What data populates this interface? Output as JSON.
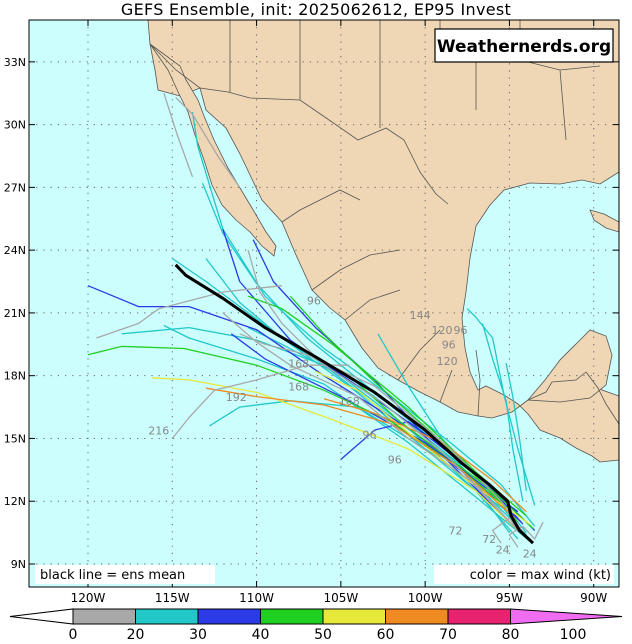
{
  "title": "GEFS Ensemble, init: 2025062612, EP95 Invest",
  "watermark": "Weathernerds.org",
  "legend_mean": "black line = ens mean",
  "legend_color": "color = max wind (kt)",
  "colors": {
    "ocean": "#ccfefe",
    "land": "#efd6b4",
    "border": "#555555",
    "mean_track": "#000000"
  },
  "chart_data": {
    "type": "map",
    "x_ticks": [
      {
        "lon": -120,
        "label": "120W"
      },
      {
        "lon": -115,
        "label": "115W"
      },
      {
        "lon": -110,
        "label": "110W"
      },
      {
        "lon": -105,
        "label": "105W"
      },
      {
        "lon": -100,
        "label": "100W"
      },
      {
        "lon": -95,
        "label": "95W"
      },
      {
        "lon": -90,
        "label": "90W"
      }
    ],
    "y_ticks": [
      {
        "lat": 9,
        "label": "9N"
      },
      {
        "lat": 12,
        "label": "12N"
      },
      {
        "lat": 15,
        "label": "15N"
      },
      {
        "lat": 18,
        "label": "18N"
      },
      {
        "lat": 21,
        "label": "21N"
      },
      {
        "lat": 24,
        "label": "24N"
      },
      {
        "lat": 27,
        "label": "27N"
      },
      {
        "lat": 30,
        "label": "30N"
      },
      {
        "lat": 33,
        "label": "33N"
      }
    ],
    "lon_range": [
      -123.5,
      -88.5
    ],
    "lat_range": [
      7.9,
      35.0
    ],
    "colorbar": {
      "ticks": [
        "0",
        "20",
        "30",
        "40",
        "50",
        "60",
        "70",
        "80",
        "100"
      ],
      "colors": [
        "#a8a8a8",
        "#22c8c8",
        "#2c3ae8",
        "#20d020",
        "#e6e83a",
        "#f08a22",
        "#e8226e",
        "#f06cf0"
      ]
    },
    "ensemble_mean": [
      [
        -93.6,
        10.0
      ],
      [
        -94.4,
        10.6
      ],
      [
        -94.9,
        11.3
      ],
      [
        -95.1,
        12.0
      ],
      [
        -96.2,
        12.8
      ],
      [
        -97.8,
        13.8
      ],
      [
        -100.0,
        15.4
      ],
      [
        -103.0,
        17.2
      ],
      [
        -106.5,
        18.9
      ],
      [
        -109.5,
        20.3
      ],
      [
        -112.0,
        21.7
      ],
      [
        -114.2,
        22.8
      ],
      [
        -114.8,
        23.3
      ]
    ],
    "members": [
      {
        "wind": 25,
        "points": [
          [
            -94,
            10.5
          ],
          [
            -96,
            12.5
          ],
          [
            -99,
            14.6
          ],
          [
            -103,
            17.2
          ],
          [
            -107,
            19.8
          ],
          [
            -110,
            22.4
          ],
          [
            -112,
            24.8
          ],
          [
            -113.2,
            27.2
          ]
        ]
      },
      {
        "wind": 25,
        "points": [
          [
            -93.5,
            10.8
          ],
          [
            -95.5,
            12.8
          ],
          [
            -98.5,
            14.8
          ],
          [
            -102,
            17.0
          ],
          [
            -106,
            19.3
          ],
          [
            -109.5,
            21.8
          ],
          [
            -112,
            25.0
          ],
          [
            -113.5,
            29.0
          ],
          [
            -113.8,
            30.6
          ]
        ]
      },
      {
        "wind": 25,
        "points": [
          [
            -94.5,
            10.2
          ],
          [
            -97,
            12.5
          ],
          [
            -101,
            15.5
          ],
          [
            -105,
            18.0
          ],
          [
            -108.5,
            19.5
          ],
          [
            -110.5,
            20.3
          ]
        ]
      },
      {
        "wind": 25,
        "points": [
          [
            -94.5,
            11.2
          ],
          [
            -96,
            12.0
          ],
          [
            -98,
            13.8
          ],
          [
            -103,
            17.0
          ],
          [
            -108.5,
            19.8
          ],
          [
            -113,
            22.5
          ],
          [
            -115,
            23.6
          ]
        ]
      },
      {
        "wind": 25,
        "points": [
          [
            -95,
            10.5
          ],
          [
            -98,
            13.8
          ],
          [
            -102,
            16.0
          ],
          [
            -106,
            18.5
          ],
          [
            -110,
            19.7
          ],
          [
            -114,
            20.3
          ],
          [
            -118,
            20.0
          ]
        ]
      },
      {
        "wind": 25,
        "points": [
          [
            -93.8,
            10.1
          ],
          [
            -97,
            12.2
          ],
          [
            -101,
            14.8
          ],
          [
            -106,
            17.6
          ],
          [
            -110,
            18.8
          ],
          [
            -114,
            19.8
          ],
          [
            -115.5,
            20.4
          ]
        ]
      },
      {
        "wind": 25,
        "points": [
          [
            -95.5,
            11.5
          ],
          [
            -100,
            14.5
          ],
          [
            -104.5,
            17.5
          ],
          [
            -108.5,
            19.8
          ],
          [
            -111,
            21.5
          ],
          [
            -113,
            23.6
          ]
        ]
      },
      {
        "wind": 25,
        "points": [
          [
            -94,
            10.4
          ],
          [
            -96,
            12.0
          ],
          [
            -99,
            14.0
          ],
          [
            -104,
            16.5
          ],
          [
            -108,
            16.8
          ],
          [
            -111,
            16.5
          ],
          [
            -112.8,
            15.6
          ]
        ]
      },
      {
        "wind": 35,
        "points": [
          [
            -94.2,
            10.9
          ],
          [
            -96.5,
            13.0
          ],
          [
            -100,
            15.2
          ],
          [
            -104,
            17.5
          ],
          [
            -108,
            19.7
          ],
          [
            -111,
            22.5
          ],
          [
            -112,
            25.0
          ]
        ]
      },
      {
        "wind": 35,
        "points": [
          [
            -95,
            11.0
          ],
          [
            -99,
            14.2
          ],
          [
            -103,
            17.8
          ],
          [
            -106.5,
            20.3
          ],
          [
            -109,
            22.5
          ],
          [
            -110.2,
            24.5
          ]
        ]
      },
      {
        "wind": 35,
        "points": [
          [
            -94.5,
            11.5
          ],
          [
            -97,
            13.0
          ],
          [
            -101,
            15.5
          ],
          [
            -106,
            18.0
          ],
          [
            -110,
            20.2
          ],
          [
            -114,
            21.3
          ],
          [
            -117,
            21.3
          ],
          [
            -120,
            22.3
          ]
        ]
      },
      {
        "wind": 35,
        "points": [
          [
            -94.3,
            11.0
          ],
          [
            -96.5,
            12.6
          ],
          [
            -100,
            14.8
          ],
          [
            -105,
            17.0
          ],
          [
            -109.5,
            18.8
          ],
          [
            -111.5,
            20.0
          ]
        ]
      },
      {
        "wind": 35,
        "points": [
          [
            -93.5,
            10.6
          ],
          [
            -96,
            12.6
          ],
          [
            -98.5,
            14.3
          ],
          [
            -101,
            15.8
          ],
          [
            -103,
            15.4
          ],
          [
            -105,
            14.0
          ]
        ]
      },
      {
        "wind": 25,
        "points": [
          [
            -94.5,
            10.8
          ],
          [
            -96.5,
            12.8
          ],
          [
            -99,
            15.0
          ],
          [
            -101,
            17.5
          ],
          [
            -102.8,
            20.0
          ]
        ]
      },
      {
        "wind": 25,
        "points": [
          [
            -93.5,
            11.8
          ],
          [
            -94.5,
            14.5
          ],
          [
            -95.3,
            17.0
          ],
          [
            -96.0,
            19.8
          ],
          [
            -97.0,
            20.8
          ],
          [
            -97.5,
            21.2
          ]
        ]
      },
      {
        "wind": 25,
        "points": [
          [
            -94.2,
            12.0
          ],
          [
            -94.8,
            14.5
          ],
          [
            -95.2,
            16.8
          ],
          [
            -96.0,
            18.8
          ],
          [
            -96.6,
            20.5
          ]
        ]
      },
      {
        "wind": 25,
        "points": [
          [
            -94.0,
            12.5
          ],
          [
            -94.4,
            15.0
          ],
          [
            -94.8,
            17.0
          ],
          [
            -95.2,
            18.6
          ]
        ]
      },
      {
        "wind": 45,
        "points": [
          [
            -94.5,
            11.0
          ],
          [
            -96.5,
            12.8
          ],
          [
            -99.5,
            15.2
          ],
          [
            -103,
            17.7
          ],
          [
            -106,
            20.0
          ],
          [
            -108,
            21.8
          ]
        ]
      },
      {
        "wind": 45,
        "points": [
          [
            -95,
            11.6
          ],
          [
            -98,
            13.6
          ],
          [
            -102,
            15.8
          ],
          [
            -106,
            17.3
          ],
          [
            -110,
            18.5
          ],
          [
            -114.3,
            19.3
          ],
          [
            -118,
            19.4
          ],
          [
            -120,
            19.0
          ]
        ]
      },
      {
        "wind": 45,
        "points": [
          [
            -93.6,
            10.7
          ],
          [
            -96,
            12.5
          ],
          [
            -99,
            14.3
          ],
          [
            -101.5,
            15.8
          ],
          [
            -104.5,
            18.0
          ]
        ]
      },
      {
        "wind": 45,
        "points": [
          [
            -94,
            11.3
          ],
          [
            -97,
            13.4
          ],
          [
            -101,
            16.5
          ],
          [
            -105.5,
            19.5
          ],
          [
            -108.5,
            21.2
          ],
          [
            -110.5,
            21.8
          ]
        ]
      },
      {
        "wind": 55,
        "points": [
          [
            -94.5,
            10.6
          ],
          [
            -97,
            12.5
          ],
          [
            -101,
            14.5
          ],
          [
            -105.5,
            15.9
          ],
          [
            -110,
            17.2
          ],
          [
            -114,
            17.8
          ],
          [
            -116.2,
            17.9
          ]
        ]
      },
      {
        "wind": 55,
        "points": [
          [
            -93.8,
            10.9
          ],
          [
            -97.5,
            13.0
          ],
          [
            -101.5,
            15.6
          ],
          [
            -104,
            17.3
          ],
          [
            -106.5,
            18.2
          ]
        ]
      },
      {
        "wind": 65,
        "points": [
          [
            -94.7,
            11.2
          ],
          [
            -98,
            13.6
          ],
          [
            -102,
            15.7
          ],
          [
            -106,
            16.6
          ],
          [
            -110,
            17.0
          ],
          [
            -113,
            17.4
          ]
        ]
      },
      {
        "wind": 65,
        "points": [
          [
            -94,
            11.5
          ],
          [
            -96,
            13.0
          ],
          [
            -99,
            14.8
          ],
          [
            -103,
            16.2
          ],
          [
            -106,
            16.9
          ]
        ]
      },
      {
        "wind": 15,
        "points": [
          [
            -94.4,
            10.5
          ],
          [
            -97,
            12.8
          ],
          [
            -101,
            15.0
          ],
          [
            -104,
            17.0
          ],
          [
            -108,
            18.5
          ],
          [
            -110,
            19.6
          ],
          [
            -112,
            21.0
          ]
        ]
      },
      {
        "wind": 15,
        "points": [
          [
            -94,
            10.3
          ],
          [
            -95.5,
            12.0
          ],
          [
            -98.5,
            14.5
          ],
          [
            -103,
            17.5
          ],
          [
            -107,
            19.0
          ],
          [
            -109.5,
            19.5
          ],
          [
            -111,
            20.0
          ]
        ]
      },
      {
        "wind": 15,
        "points": [
          [
            -95,
            11.0
          ],
          [
            -98.5,
            14.0
          ],
          [
            -102.5,
            16.7
          ],
          [
            -106,
            18.5
          ],
          [
            -108.5,
            20.5
          ],
          [
            -109.8,
            22.0
          ],
          [
            -110.5,
            24.0
          ]
        ]
      },
      {
        "wind": 15,
        "points": [
          [
            -104.5,
            18.5
          ],
          [
            -107,
            18.5
          ],
          [
            -110,
            17.8
          ],
          [
            -112.5,
            17.3
          ],
          [
            -114,
            16.0
          ],
          [
            -115,
            15.0
          ]
        ]
      },
      {
        "wind": 15,
        "points": [
          [
            -108.5,
            22.3
          ],
          [
            -112,
            22.0
          ],
          [
            -115.8,
            21.2
          ],
          [
            -117,
            20.5
          ],
          [
            -119.5,
            19.8
          ]
        ]
      },
      {
        "wind": 15,
        "points": [
          [
            -111,
            27.0
          ],
          [
            -112.3,
            28.5
          ],
          [
            -113.8,
            30.5
          ],
          [
            -114.8,
            31.3
          ]
        ]
      },
      {
        "wind": 15,
        "points": [
          [
            -113.8,
            27.5
          ],
          [
            -114.7,
            29.5
          ],
          [
            -115.5,
            31.5
          ]
        ]
      },
      {
        "wind": 15,
        "points": [
          [
            -94.5,
            9.8
          ],
          [
            -95.0,
            10.4
          ],
          [
            -94.2,
            10.8
          ],
          [
            -93.5,
            10.2
          ],
          [
            -93.0,
            11.0
          ]
        ]
      },
      {
        "wind": 15,
        "points": [
          [
            -95.5,
            10.0
          ],
          [
            -96.0,
            10.6
          ],
          [
            -95.0,
            11.2
          ],
          [
            -94.5,
            10.6
          ]
        ]
      }
    ],
    "labels": [
      {
        "text": "144",
        "lon": -100.3,
        "lat": 20.7
      },
      {
        "text": "120",
        "lon": -99.0,
        "lat": 20.0
      },
      {
        "text": "96",
        "lon": -97.9,
        "lat": 20.0
      },
      {
        "text": "96",
        "lon": -98.6,
        "lat": 19.3
      },
      {
        "text": "120",
        "lon": -98.7,
        "lat": 18.5
      },
      {
        "text": "216",
        "lon": -115.8,
        "lat": 15.2
      },
      {
        "text": "192",
        "lon": -111.2,
        "lat": 16.8
      },
      {
        "text": "168",
        "lon": -107.5,
        "lat": 17.3
      },
      {
        "text": "168",
        "lon": -104.5,
        "lat": 16.6
      },
      {
        "text": "168",
        "lon": -107.5,
        "lat": 18.4
      },
      {
        "text": "96",
        "lon": -103.3,
        "lat": 15.0
      },
      {
        "text": "96",
        "lon": -101.8,
        "lat": 13.8
      },
      {
        "text": "96",
        "lon": -106.6,
        "lat": 21.4
      },
      {
        "text": "72",
        "lon": -98.2,
        "lat": 10.4
      },
      {
        "text": "72",
        "lon": -96.2,
        "lat": 10.0
      },
      {
        "text": "24",
        "lon": -95.4,
        "lat": 9.5
      },
      {
        "text": "24",
        "lon": -93.8,
        "lat": 9.3
      }
    ]
  }
}
